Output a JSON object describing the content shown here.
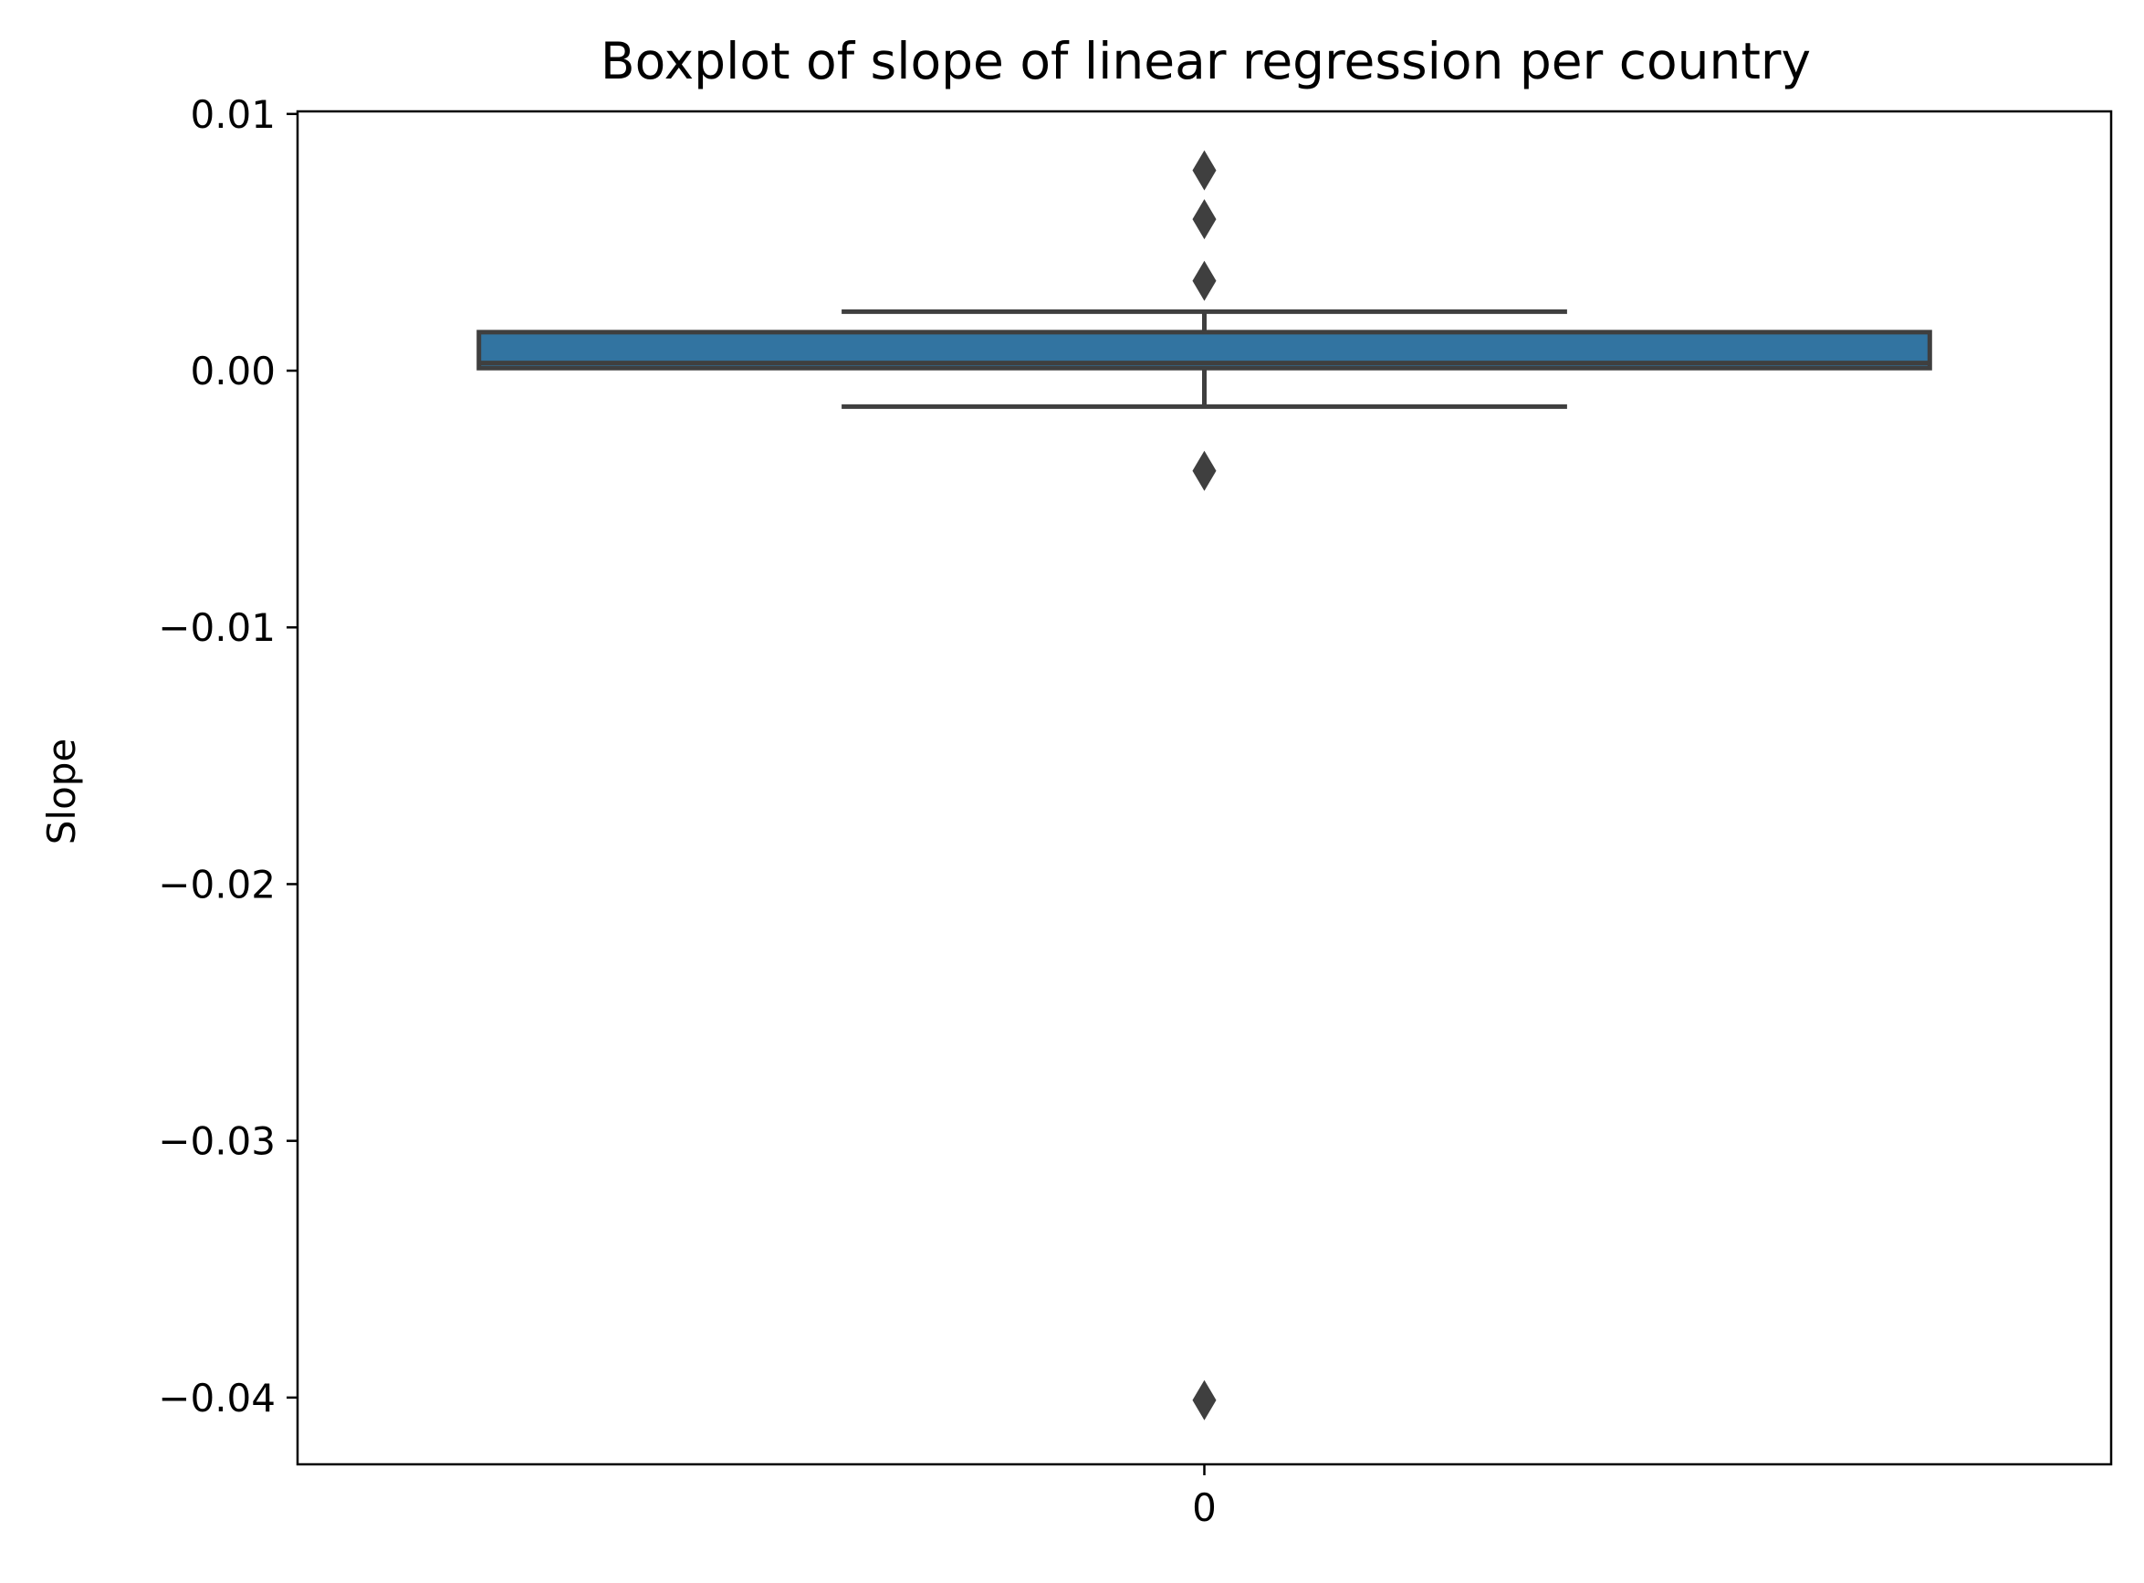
{
  "chart_data": {
    "type": "box",
    "title": "Boxplot of slope of linear regression per country",
    "xlabel": "",
    "ylabel": "Slope",
    "categories": [
      "0"
    ],
    "ylim": [
      -0.0426,
      0.0101
    ],
    "y_ticks": [
      0.01,
      0.0,
      -0.01,
      -0.02,
      -0.03,
      -0.04
    ],
    "y_tick_labels": [
      "0.01",
      "0.00",
      "−0.01",
      "−0.02",
      "−0.03",
      "−0.04"
    ],
    "grid": false,
    "series": [
      {
        "category": "0",
        "q1": 0.0001,
        "median": 0.0003,
        "q3": 0.0015,
        "whisker_low": -0.0014,
        "whisker_high": 0.0023,
        "outliers": [
          0.0078,
          0.0059,
          0.0035,
          -0.0039,
          -0.0401
        ]
      }
    ],
    "colors": {
      "box_fill": "#3274a1",
      "box_edge": "#3f3f3f",
      "axes": "#000000"
    }
  }
}
